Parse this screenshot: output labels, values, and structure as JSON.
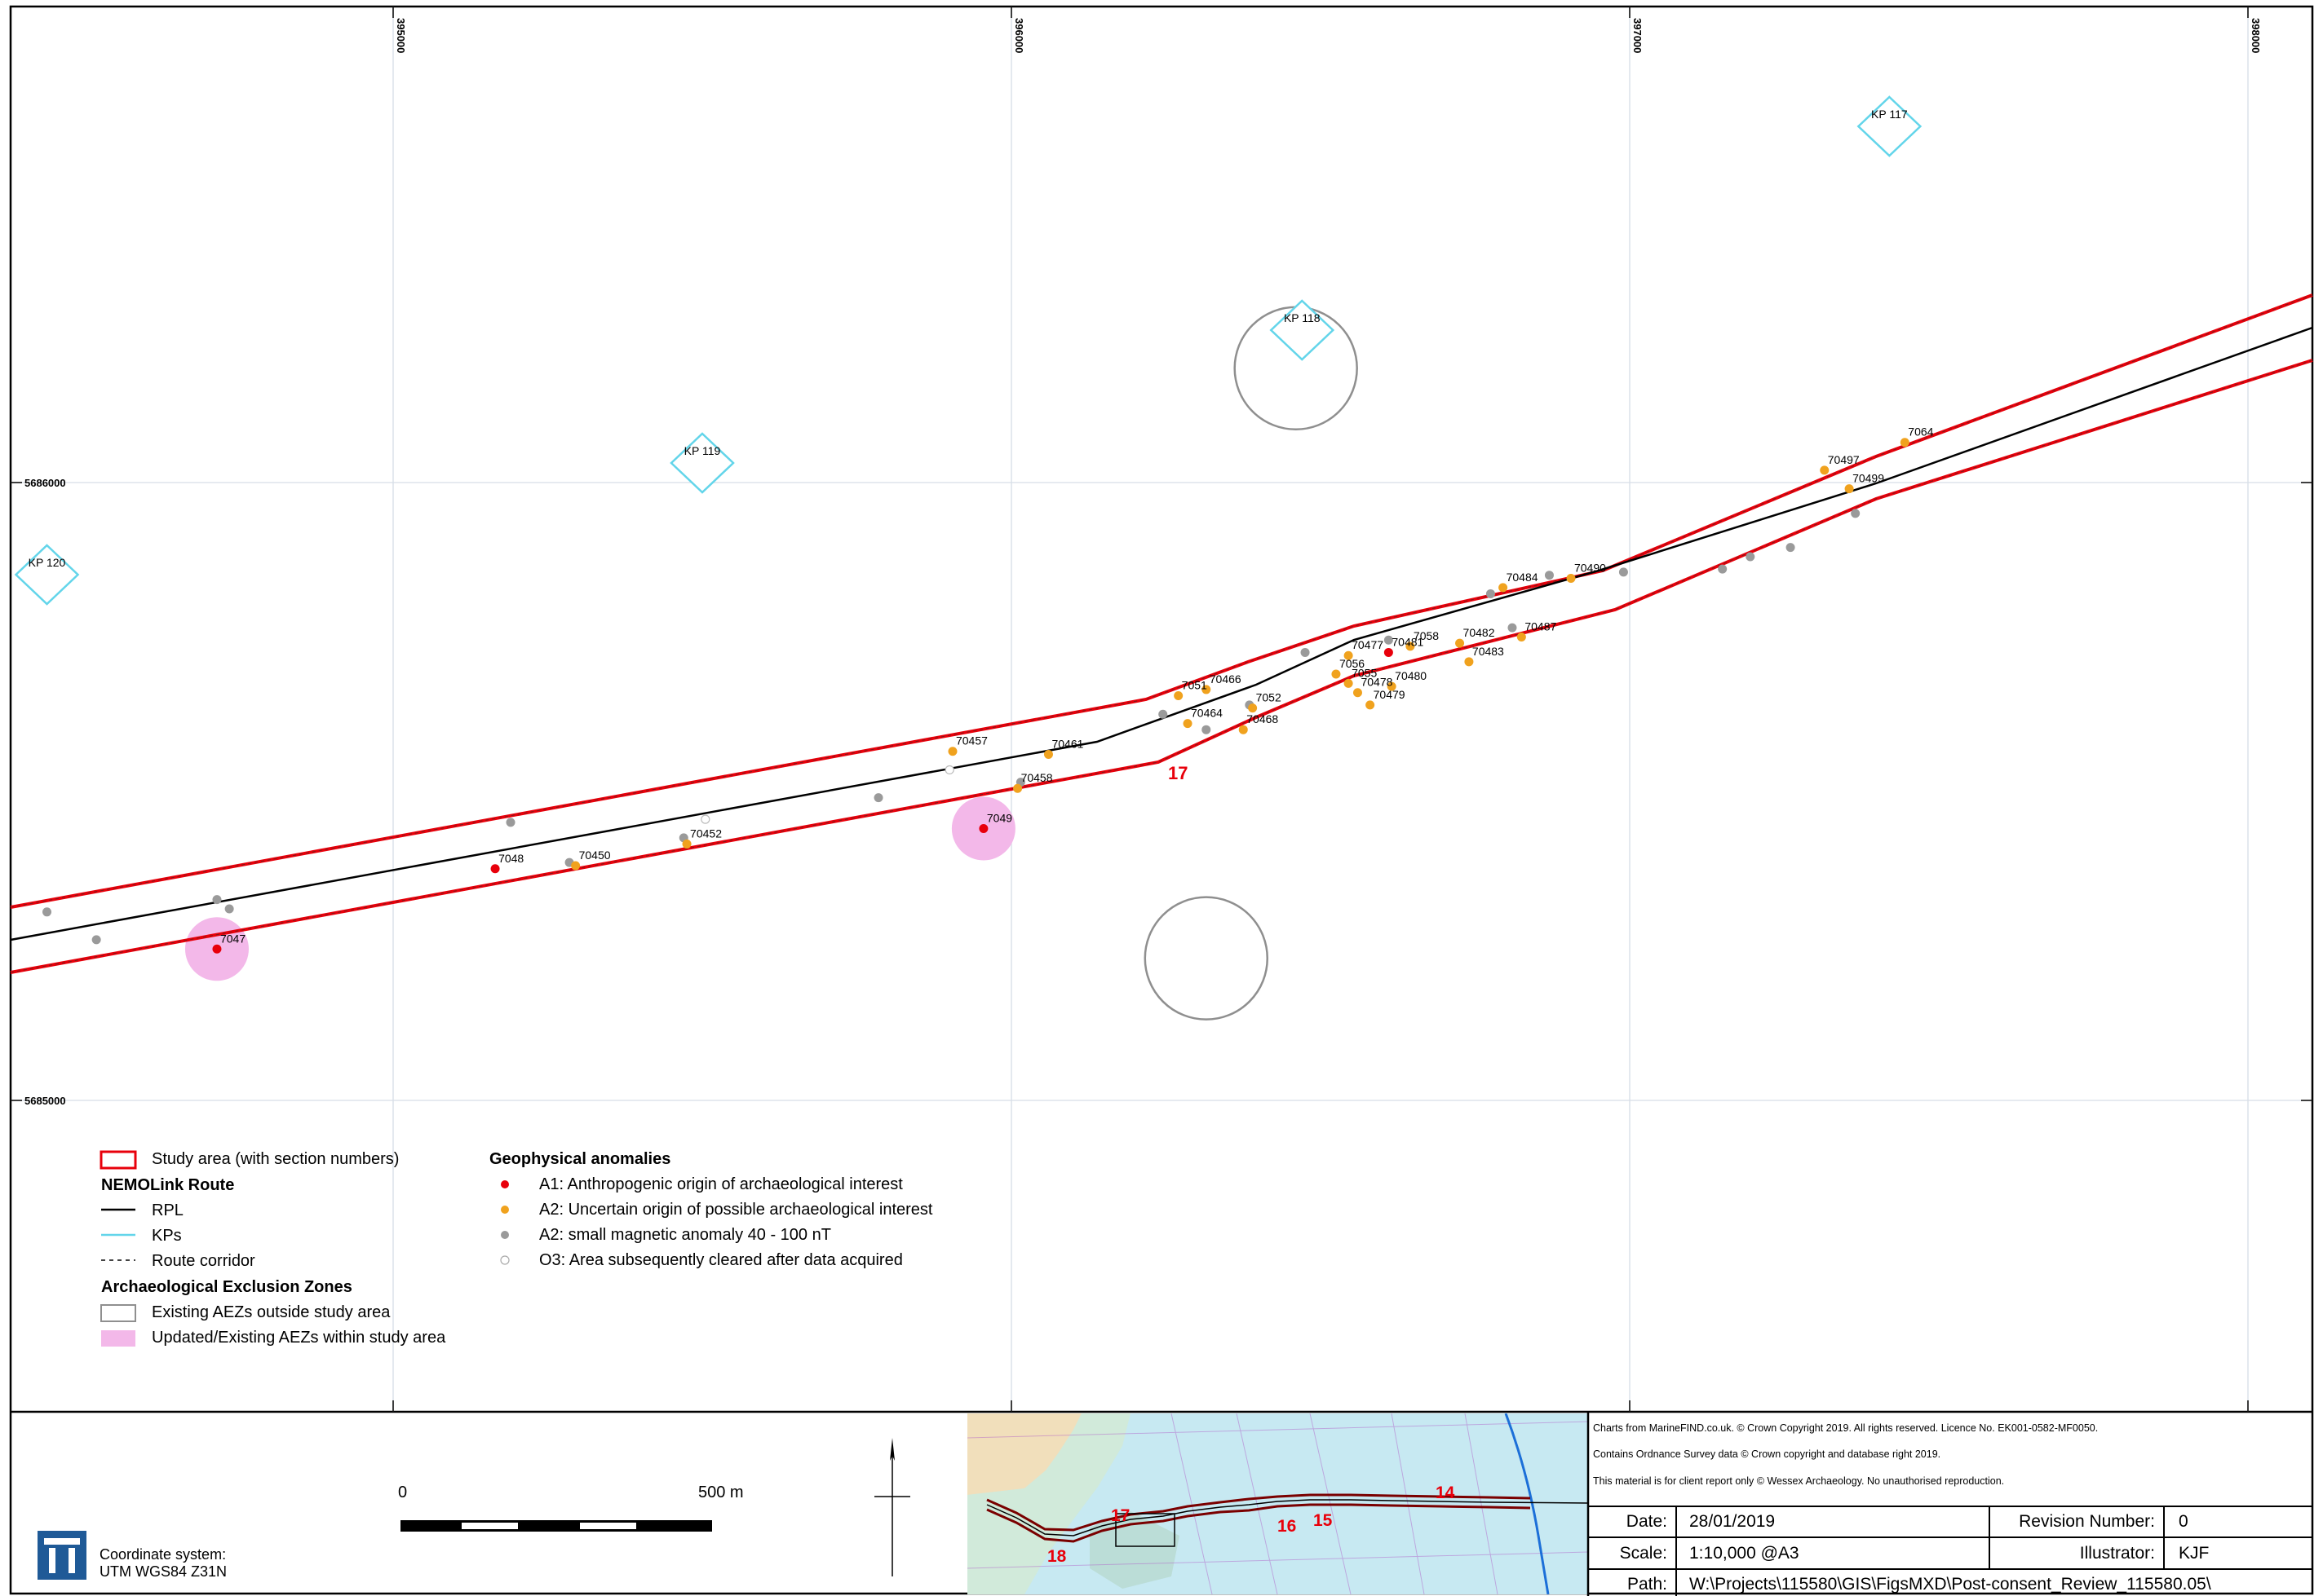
{
  "map": {
    "easting_labels": [
      "395000",
      "396000",
      "397000",
      "398000"
    ],
    "northing_labels": [
      "5686000",
      "5685000"
    ],
    "section_number": "17",
    "kp_markers": [
      {
        "label": "KP 120",
        "easting": 394440,
        "northing": 5685855
      },
      {
        "label": "KP 119",
        "easting": 395500,
        "northing": 5686035
      },
      {
        "label": "KP 118",
        "easting": 396470,
        "northing": 5686255
      },
      {
        "label": "KP 117",
        "easting": 397420,
        "northing": 5686590
      }
    ],
    "aez_existing_outside": [
      {
        "easting": 396460,
        "northing": 5686185
      },
      {
        "easting": 396315,
        "northing": 5685230
      }
    ],
    "anomalies": [
      {
        "id": "7047",
        "class": "A1",
        "easting": 394715,
        "northing": 5685245,
        "aez": true
      },
      {
        "id": "7048",
        "class": "A1",
        "easting": 395165,
        "northing": 5685375
      },
      {
        "id": "70450",
        "class": "A2",
        "easting": 395295,
        "northing": 5685380
      },
      {
        "id": "70452",
        "class": "A2",
        "easting": 395475,
        "northing": 5685415
      },
      {
        "id": "7049",
        "class": "A1",
        "easting": 395955,
        "northing": 5685440,
        "aez": true
      },
      {
        "id": "70457",
        "class": "A2",
        "easting": 395905,
        "northing": 5685565
      },
      {
        "id": "70458",
        "class": "A2",
        "easting": 396010,
        "northing": 5685505
      },
      {
        "id": "70461",
        "class": "A2",
        "easting": 396060,
        "northing": 5685560
      },
      {
        "id": "7051",
        "class": "A2",
        "easting": 396270,
        "northing": 5685655
      },
      {
        "id": "70464",
        "class": "A2",
        "easting": 396285,
        "northing": 5685610
      },
      {
        "id": "70466",
        "class": "A2",
        "easting": 396315,
        "northing": 5685665
      },
      {
        "id": "7052",
        "class": "A2",
        "easting": 396390,
        "northing": 5685635
      },
      {
        "id": "70468",
        "class": "A2",
        "easting": 396375,
        "northing": 5685600
      },
      {
        "id": "70477",
        "class": "A2",
        "easting": 396545,
        "northing": 5685720
      },
      {
        "id": "7056",
        "class": "A2",
        "easting": 396525,
        "northing": 5685690
      },
      {
        "id": "7055",
        "class": "A2",
        "easting": 396545,
        "northing": 5685675
      },
      {
        "id": "70478",
        "class": "A2",
        "easting": 396560,
        "northing": 5685660
      },
      {
        "id": "70479",
        "class": "A2",
        "easting": 396580,
        "northing": 5685640
      },
      {
        "id": "70481",
        "class": "A1",
        "easting": 396610,
        "northing": 5685725
      },
      {
        "id": "7058",
        "class": "A2",
        "easting": 396645,
        "northing": 5685735
      },
      {
        "id": "70480",
        "class": "A2",
        "easting": 396615,
        "northing": 5685670
      },
      {
        "id": "70482",
        "class": "A2",
        "easting": 396725,
        "northing": 5685740
      },
      {
        "id": "70483",
        "class": "A2",
        "easting": 396740,
        "northing": 5685710
      },
      {
        "id": "70487",
        "class": "A2",
        "easting": 396825,
        "northing": 5685750
      },
      {
        "id": "70484",
        "class": "A2",
        "easting": 396795,
        "northing": 5685830
      },
      {
        "id": "70490",
        "class": "A2",
        "easting": 396905,
        "northing": 5685845
      },
      {
        "id": "70497",
        "class": "A2",
        "easting": 397315,
        "northing": 5686020
      },
      {
        "id": "7064",
        "class": "A2",
        "easting": 397445,
        "northing": 5686065
      },
      {
        "id": "70499",
        "class": "A2",
        "easting": 397355,
        "northing": 5685990
      }
    ],
    "grey_anomalies": [
      [
        394440,
        5685305
      ],
      [
        394520,
        5685260
      ],
      [
        394715,
        5685325
      ],
      [
        394735,
        5685310
      ],
      [
        395190,
        5685450
      ],
      [
        395285,
        5685385
      ],
      [
        395470,
        5685425
      ],
      [
        395785,
        5685490
      ],
      [
        396015,
        5685515
      ],
      [
        396245,
        5685625
      ],
      [
        396315,
        5685600
      ],
      [
        396385,
        5685640
      ],
      [
        396475,
        5685725
      ],
      [
        396610,
        5685745
      ],
      [
        396775,
        5685820
      ],
      [
        396810,
        5685765
      ],
      [
        396870,
        5685850
      ],
      [
        396990,
        5685855
      ],
      [
        397150,
        5685860
      ],
      [
        397195,
        5685880
      ],
      [
        397260,
        5685895
      ],
      [
        397365,
        5685950
      ]
    ],
    "cleared_anomalies": [
      [
        395900,
        5685535
      ],
      [
        395505,
        5685455
      ]
    ]
  },
  "legend": {
    "study_area_label": "Study area (with section numbers)",
    "route_heading": "NEMOLink Route",
    "rpl_label": "RPL",
    "kps_label": "KPs",
    "corridor_label": "Route corridor",
    "aez_heading": "Archaeological Exclusion Zones",
    "aez_outside_label": "Existing AEZs outside study area",
    "aez_within_label": "Updated/Existing AEZs within study area",
    "geo_heading": "Geophysical anomalies",
    "a1_label": "A1: Anthropogenic origin of archaeological interest",
    "a2_label": "A2: Uncertain origin of possible archaeological interest",
    "a2_small_label": "A2: small magnetic anomaly 40 - 100 nT",
    "o3_label": "O3: Area subsequently cleared after data acquired"
  },
  "scalebar": {
    "zero": "0",
    "end": "500 m"
  },
  "coordinate_system": {
    "line1": "Coordinate system:",
    "line2": "UTM WGS84 Z31N"
  },
  "inset": {
    "sections": [
      "18",
      "17",
      "16",
      "15",
      "14"
    ]
  },
  "credits": {
    "line1": "Charts from MarineFIND.co.uk. © Crown Copyright 2019. All rights reserved. Licence No. EK001-0582-MF0050.",
    "line2": "Contains Ordnance Survey data © Crown copyright and database right 2019.",
    "line3": "This material is for client report only © Wessex Archaeology. No unauthorised reproduction."
  },
  "titleblock": {
    "date_label": "Date:",
    "date_value": "28/01/2019",
    "revision_label": "Revision Number:",
    "revision_value": "0",
    "scale_label": "Scale:",
    "scale_value": "1:10,000 @A3",
    "illustrator_label": "Illustrator:",
    "illustrator_value": "KJF",
    "path_label": "Path:",
    "path_value": "W:\\Projects\\115580\\GIS\\FigsMXD\\Post-consent_Review_115580.05\\"
  },
  "colors": {
    "study_area": "#e8000b",
    "rpl": "#000000",
    "kp": "#63d5ea",
    "a1": "#e8000b",
    "a2": "#f0a21e",
    "a2_small": "#9a9a9a",
    "aez_within": "#f3b8e9",
    "aez_outside": "#8f8f8f"
  }
}
